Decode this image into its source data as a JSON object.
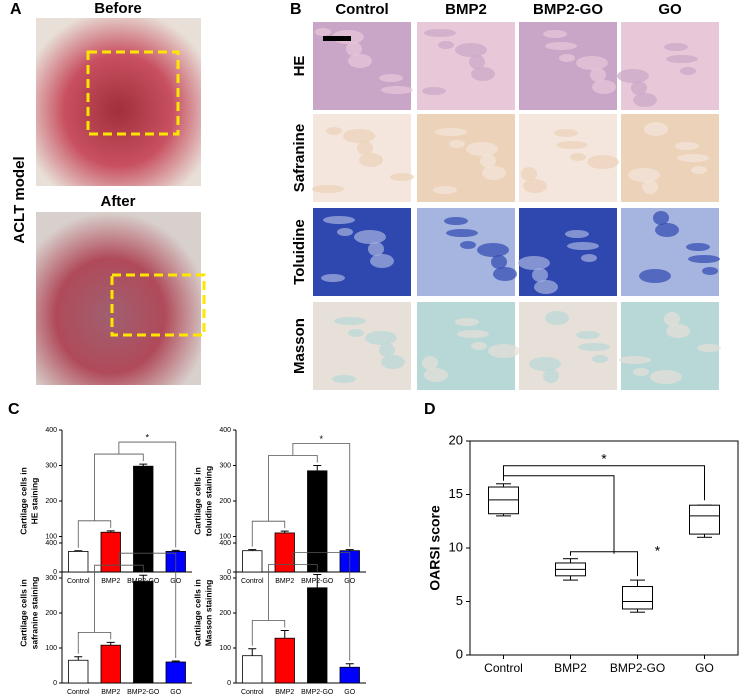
{
  "panels": {
    "A": {
      "letter": "A",
      "before": "Before",
      "after": "After",
      "side": "ACLT model"
    },
    "B": {
      "letter": "B",
      "columns": [
        "Control",
        "BMP2",
        "BMP2-GO",
        "GO"
      ],
      "rows": [
        "HE",
        "Safranine",
        "Toluidine",
        "Masson"
      ]
    },
    "C": {
      "letter": "C"
    },
    "D": {
      "letter": "D"
    }
  },
  "chart_data": [
    {
      "type": "bar",
      "ylabel": [
        "Cartilage cells in",
        "HE staining"
      ],
      "categories": [
        "Control",
        "BMP2",
        "BMP2-GO",
        "GO"
      ],
      "values": [
        58,
        112,
        298,
        58
      ],
      "errors": [
        2,
        4,
        6,
        3
      ],
      "colors": [
        "#ffffff",
        "#ff0000",
        "#000000",
        "#0000ff"
      ],
      "ylim": [
        0,
        400
      ],
      "yticks": [
        0,
        100,
        200,
        300,
        400
      ],
      "annotation": "*"
    },
    {
      "type": "bar",
      "ylabel": [
        "Cartilage cells in",
        "toluidine staining"
      ],
      "categories": [
        "Control",
        "BMP2",
        "BMP2-GO",
        "GO"
      ],
      "values": [
        60,
        110,
        285,
        60
      ],
      "errors": [
        3,
        5,
        15,
        3
      ],
      "colors": [
        "#ffffff",
        "#ff0000",
        "#000000",
        "#0000ff"
      ],
      "ylim": [
        0,
        400
      ],
      "yticks": [
        0,
        100,
        200,
        300,
        400
      ],
      "annotation": "*"
    },
    {
      "type": "bar",
      "ylabel": [
        "Cartilage cells in",
        "safranine staining"
      ],
      "categories": [
        "Control",
        "BMP2",
        "BMP2-GO",
        "GO"
      ],
      "values": [
        65,
        108,
        290,
        60
      ],
      "errors": [
        10,
        8,
        18,
        3
      ],
      "colors": [
        "#ffffff",
        "#ff0000",
        "#000000",
        "#0000ff"
      ],
      "ylim": [
        0,
        400
      ],
      "yticks": [
        0,
        100,
        200,
        300,
        400
      ],
      "annotation": "*"
    },
    {
      "type": "bar",
      "ylabel": [
        "Cartilage cells in",
        "Masson staining"
      ],
      "categories": [
        "Control",
        "BMP2",
        "BMP2-GO",
        "GO"
      ],
      "values": [
        78,
        128,
        272,
        45
      ],
      "errors": [
        20,
        22,
        38,
        10
      ],
      "colors": [
        "#ffffff",
        "#ff0000",
        "#000000",
        "#0000ff"
      ],
      "ylim": [
        0,
        400
      ],
      "yticks": [
        0,
        100,
        200,
        300,
        400
      ],
      "annotation": "*"
    },
    {
      "type": "box",
      "ylabel": "OARSI score",
      "categories": [
        "Control",
        "BMP2",
        "BMP2-GO",
        "GO"
      ],
      "boxes": [
        {
          "min": 13,
          "q1": 13.2,
          "median": 14.5,
          "q3": 15.7,
          "max": 16
        },
        {
          "min": 7,
          "q1": 7.4,
          "median": 8,
          "q3": 8.6,
          "max": 9
        },
        {
          "min": 4,
          "q1": 4.3,
          "median": 5,
          "q3": 6.4,
          "max": 7
        },
        {
          "min": 11,
          "q1": 11.3,
          "median": 13,
          "q3": 14,
          "max": 14
        }
      ],
      "ylim": [
        0,
        20
      ],
      "yticks": [
        0,
        5,
        10,
        15,
        20
      ],
      "annotations": [
        "*",
        "*"
      ]
    }
  ]
}
